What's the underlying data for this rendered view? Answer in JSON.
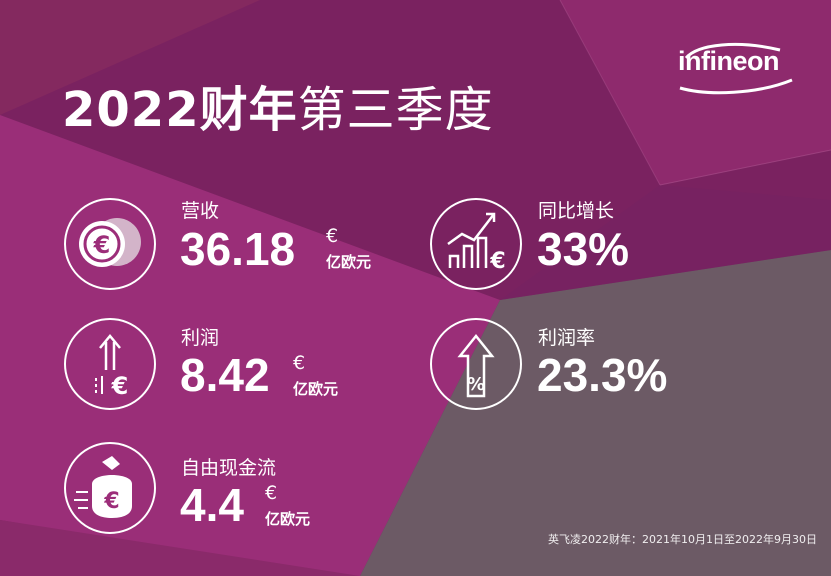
{
  "title": {
    "bold": "2022财年",
    "normal": "第三季度"
  },
  "logo": {
    "text": "infineon"
  },
  "metrics": {
    "revenue": {
      "label": "营收",
      "value": "36.18",
      "currency": "€",
      "unit": "亿欧元",
      "icon": "euro-coins-icon"
    },
    "growth": {
      "label": "同比增长",
      "value": "33%",
      "icon": "growth-chart-icon"
    },
    "profit": {
      "label": "利润",
      "value": "8.42",
      "currency": "€",
      "unit": "亿欧元",
      "icon": "profit-arrow-euro-icon"
    },
    "margin": {
      "label": "利润率",
      "value": "23.3%",
      "icon": "percent-arrow-icon"
    },
    "cashflow": {
      "label": "自由现金流",
      "value": "4.4",
      "currency": "€",
      "unit": "亿欧元",
      "icon": "money-bag-euro-icon"
    }
  },
  "footnote": "英飞凌2022财年：2021年10月1日至2022年9月30日",
  "colors": {
    "magenta": "#9c2d79",
    "purple": "#7d2260",
    "gray": "#6b5a64",
    "white": "#ffffff"
  }
}
